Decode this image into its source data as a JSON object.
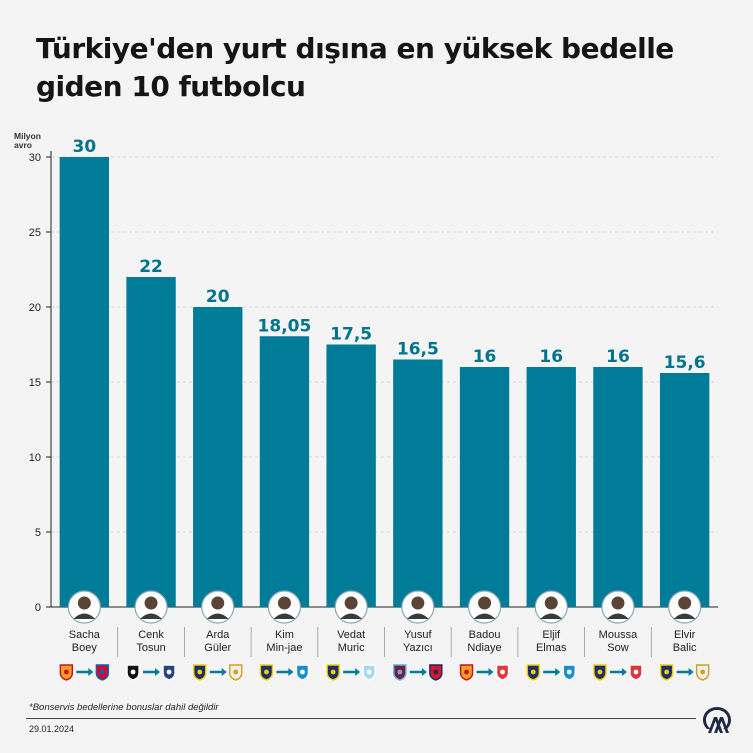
{
  "title": "Türkiye'den yurt dışına en yüksek bedelle giden 10 futbolcu",
  "footnote": "*Bonservis bedellerine bonuslar dahil değildir",
  "date": "29.01.2024",
  "colors": {
    "bar": "#007b98",
    "value_label": "#00748f",
    "axis": "#222222"
  },
  "chart_data": {
    "type": "bar",
    "unit_label": [
      "Milyon",
      "avro"
    ],
    "ylim": [
      0,
      30
    ],
    "yticks": [
      "0",
      "5",
      "10",
      "15",
      "20",
      "25",
      "30"
    ],
    "grid": true,
    "categories": [
      "Sacha Boey",
      "Cenk Tosun",
      "Arda Güler",
      "Kim Min-jae",
      "Vedat Muric",
      "Yusuf Yazıcı",
      "Badou Ndiaye",
      "Eljif Elmas",
      "Moussa Sow",
      "Elvir Balic"
    ],
    "category_lines": [
      [
        "Sacha",
        "Boey"
      ],
      [
        "Cenk",
        "Tosun"
      ],
      [
        "Arda",
        "Güler"
      ],
      [
        "Kim",
        "Min-jae"
      ],
      [
        "Vedat",
        "Muric"
      ],
      [
        "Yusuf",
        "Yazıcı"
      ],
      [
        "Badou",
        "Ndiaye"
      ],
      [
        "Eljif",
        "Elmas"
      ],
      [
        "Moussa",
        "Sow"
      ],
      [
        "Elvir",
        "Balic"
      ]
    ],
    "values": [
      30,
      22,
      20,
      18.05,
      17.5,
      16.5,
      16,
      16,
      16,
      15.6
    ],
    "value_labels": [
      "30",
      "22",
      "20",
      "18,05",
      "17,5",
      "16,5",
      "16",
      "16",
      "16",
      "15,6"
    ],
    "transfers": [
      {
        "from": "galatasaray",
        "to": "bayern-munich"
      },
      {
        "from": "besiktas",
        "to": "everton"
      },
      {
        "from": "fenerbahce",
        "to": "real-madrid"
      },
      {
        "from": "fenerbahce",
        "to": "napoli"
      },
      {
        "from": "fenerbahce",
        "to": "lazio"
      },
      {
        "from": "trabzonspor",
        "to": "lille"
      },
      {
        "from": "galatasaray",
        "to": "stoke-city"
      },
      {
        "from": "fenerbahce",
        "to": "napoli"
      },
      {
        "from": "fenerbahce",
        "to": "al-ahli"
      },
      {
        "from": "fenerbahce",
        "to": "real-madrid"
      }
    ],
    "club_colors": {
      "galatasaray": [
        "#f2a01e",
        "#c8102e"
      ],
      "bayern-munich": [
        "#dc052d",
        "#0066b2"
      ],
      "besiktas": [
        "#111111",
        "#ffffff"
      ],
      "everton": [
        "#274488",
        "#ffffff"
      ],
      "fenerbahce": [
        "#1c2e6b",
        "#f5d000"
      ],
      "real-madrid": [
        "#f0f0f0",
        "#d4a017"
      ],
      "napoli": [
        "#1a8fd1",
        "#ffffff"
      ],
      "lazio": [
        "#a8d8f0",
        "#ffffff"
      ],
      "trabzonspor": [
        "#7a1b3a",
        "#5ab0e6"
      ],
      "lille": [
        "#d7182a",
        "#1a2a5e"
      ],
      "stoke-city": [
        "#e03a3e",
        "#ffffff"
      ],
      "al-ahli": [
        "#e0343b",
        "#ffffff"
      ]
    }
  }
}
